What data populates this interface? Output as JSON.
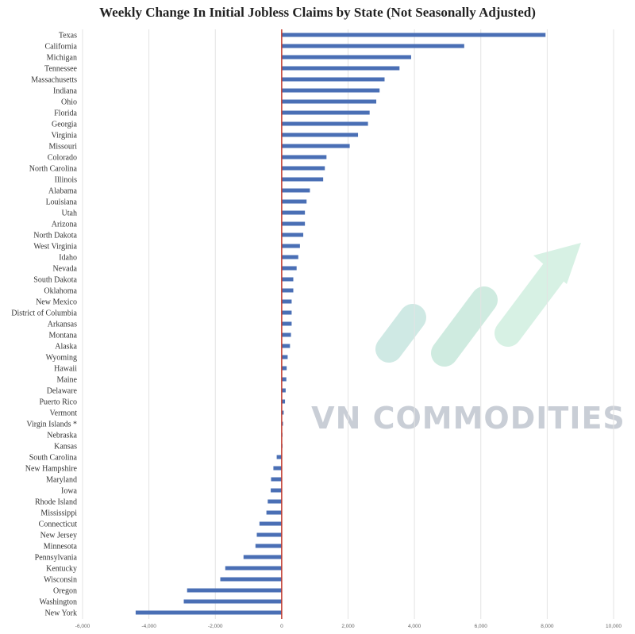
{
  "chart_data": {
    "type": "bar",
    "orientation": "horizontal",
    "title": "Weekly Change In Initial Jobless Claims by State (Not Seasonally Adjusted)",
    "xlabel": "",
    "ylabel": "",
    "xlim": [
      -6000,
      10000
    ],
    "xticks": [
      -6000,
      -4000,
      -2000,
      0,
      2000,
      4000,
      6000,
      8000,
      10000
    ],
    "xtick_labels": [
      "-6,000",
      "-4,000",
      "-2,000",
      "0",
      "2,000",
      "4,000",
      "6,000",
      "8,000",
      "10,000"
    ],
    "grid": "vertical",
    "bar_color": "#4a6fb5",
    "zero_line_color": "#c0392b",
    "categories": [
      "Texas",
      "California",
      "Michigan",
      "Tennessee",
      "Massachusetts",
      "Indiana",
      "Ohio",
      "Florida",
      "Georgia",
      "Virginia",
      "Missouri",
      "Colorado",
      "North Carolina",
      "Illinois",
      "Alabama",
      "Louisiana",
      "Utah",
      "Arizona",
      "North Dakota",
      "West Virginia",
      "Idaho",
      "Nevada",
      "South Dakota",
      "Oklahoma",
      "New Mexico",
      "District of Columbia",
      "Arkansas",
      "Montana",
      "Alaska",
      "Wyoming",
      "Hawaii",
      "Maine",
      "Delaware",
      "Puerto Rico",
      "Vermont",
      "Virgin Islands *",
      "Nebraska",
      "Kansas",
      "South Carolina",
      "New Hampshire",
      "Maryland",
      "Iowa",
      "Rhode Island",
      "Mississippi",
      "Connecticut",
      "New Jersey",
      "Minnesota",
      "Pennsylvania",
      "Kentucky",
      "Wisconsin",
      "Oregon",
      "Washington",
      "New York"
    ],
    "values": [
      7950,
      5500,
      3900,
      3550,
      3100,
      2950,
      2850,
      2650,
      2600,
      2300,
      2050,
      1350,
      1300,
      1250,
      850,
      750,
      700,
      700,
      650,
      550,
      500,
      450,
      350,
      350,
      300,
      300,
      300,
      280,
      250,
      180,
      150,
      140,
      120,
      100,
      60,
      40,
      20,
      10,
      -150,
      -250,
      -320,
      -330,
      -420,
      -460,
      -670,
      -750,
      -790,
      -1150,
      -1700,
      -1850,
      -2850,
      -2950,
      -4400
    ]
  },
  "watermark": {
    "text": "VN COMMODITIES"
  }
}
